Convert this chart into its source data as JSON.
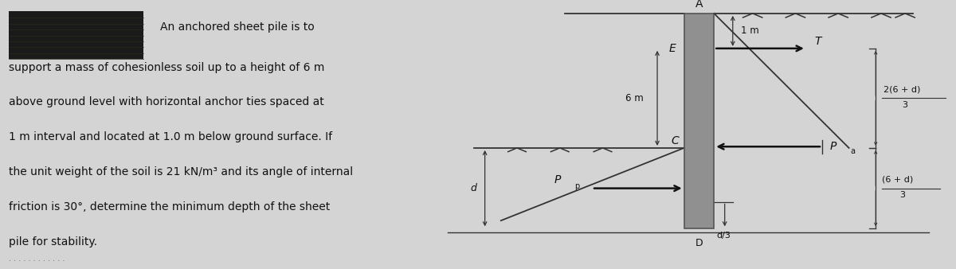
{
  "bg_color": "#d4d4d4",
  "text_color": "#111111",
  "pile_color": "#909090",
  "pile_edge": "#555555",
  "line_color": "#333333",
  "hatch_color": "#333333",
  "figsize": [
    12.0,
    3.38
  ],
  "dpi": 100,
  "text_lines": [
    "An anchored sheet pile is to",
    "support a mass of cohesionless soil up to a height of 6 m",
    "above ground level with horizontal anchor ties spaced at",
    "1 m interval and located at 1.0 m below ground surface. If",
    "the unit weight of the soil is 21 kN/m³ and its angle of internal",
    "friction is 30°, determine the minimum depth of the sheet",
    "pile for stability."
  ],
  "label_A": "A",
  "label_E": "E",
  "label_C": "C",
  "label_T": "T",
  "label_Pa": "P",
  "label_Pa_sub": "a",
  "label_Pp": "P",
  "label_Pp_sub": "p",
  "label_1m": "1 m",
  "label_6m": "6 m",
  "label_d": "d",
  "label_d3": "d/3",
  "label_frac1_num": "2(6 + d)",
  "label_frac1_den": "3",
  "label_frac2_num": "6 + d",
  "label_frac2_den": "3"
}
